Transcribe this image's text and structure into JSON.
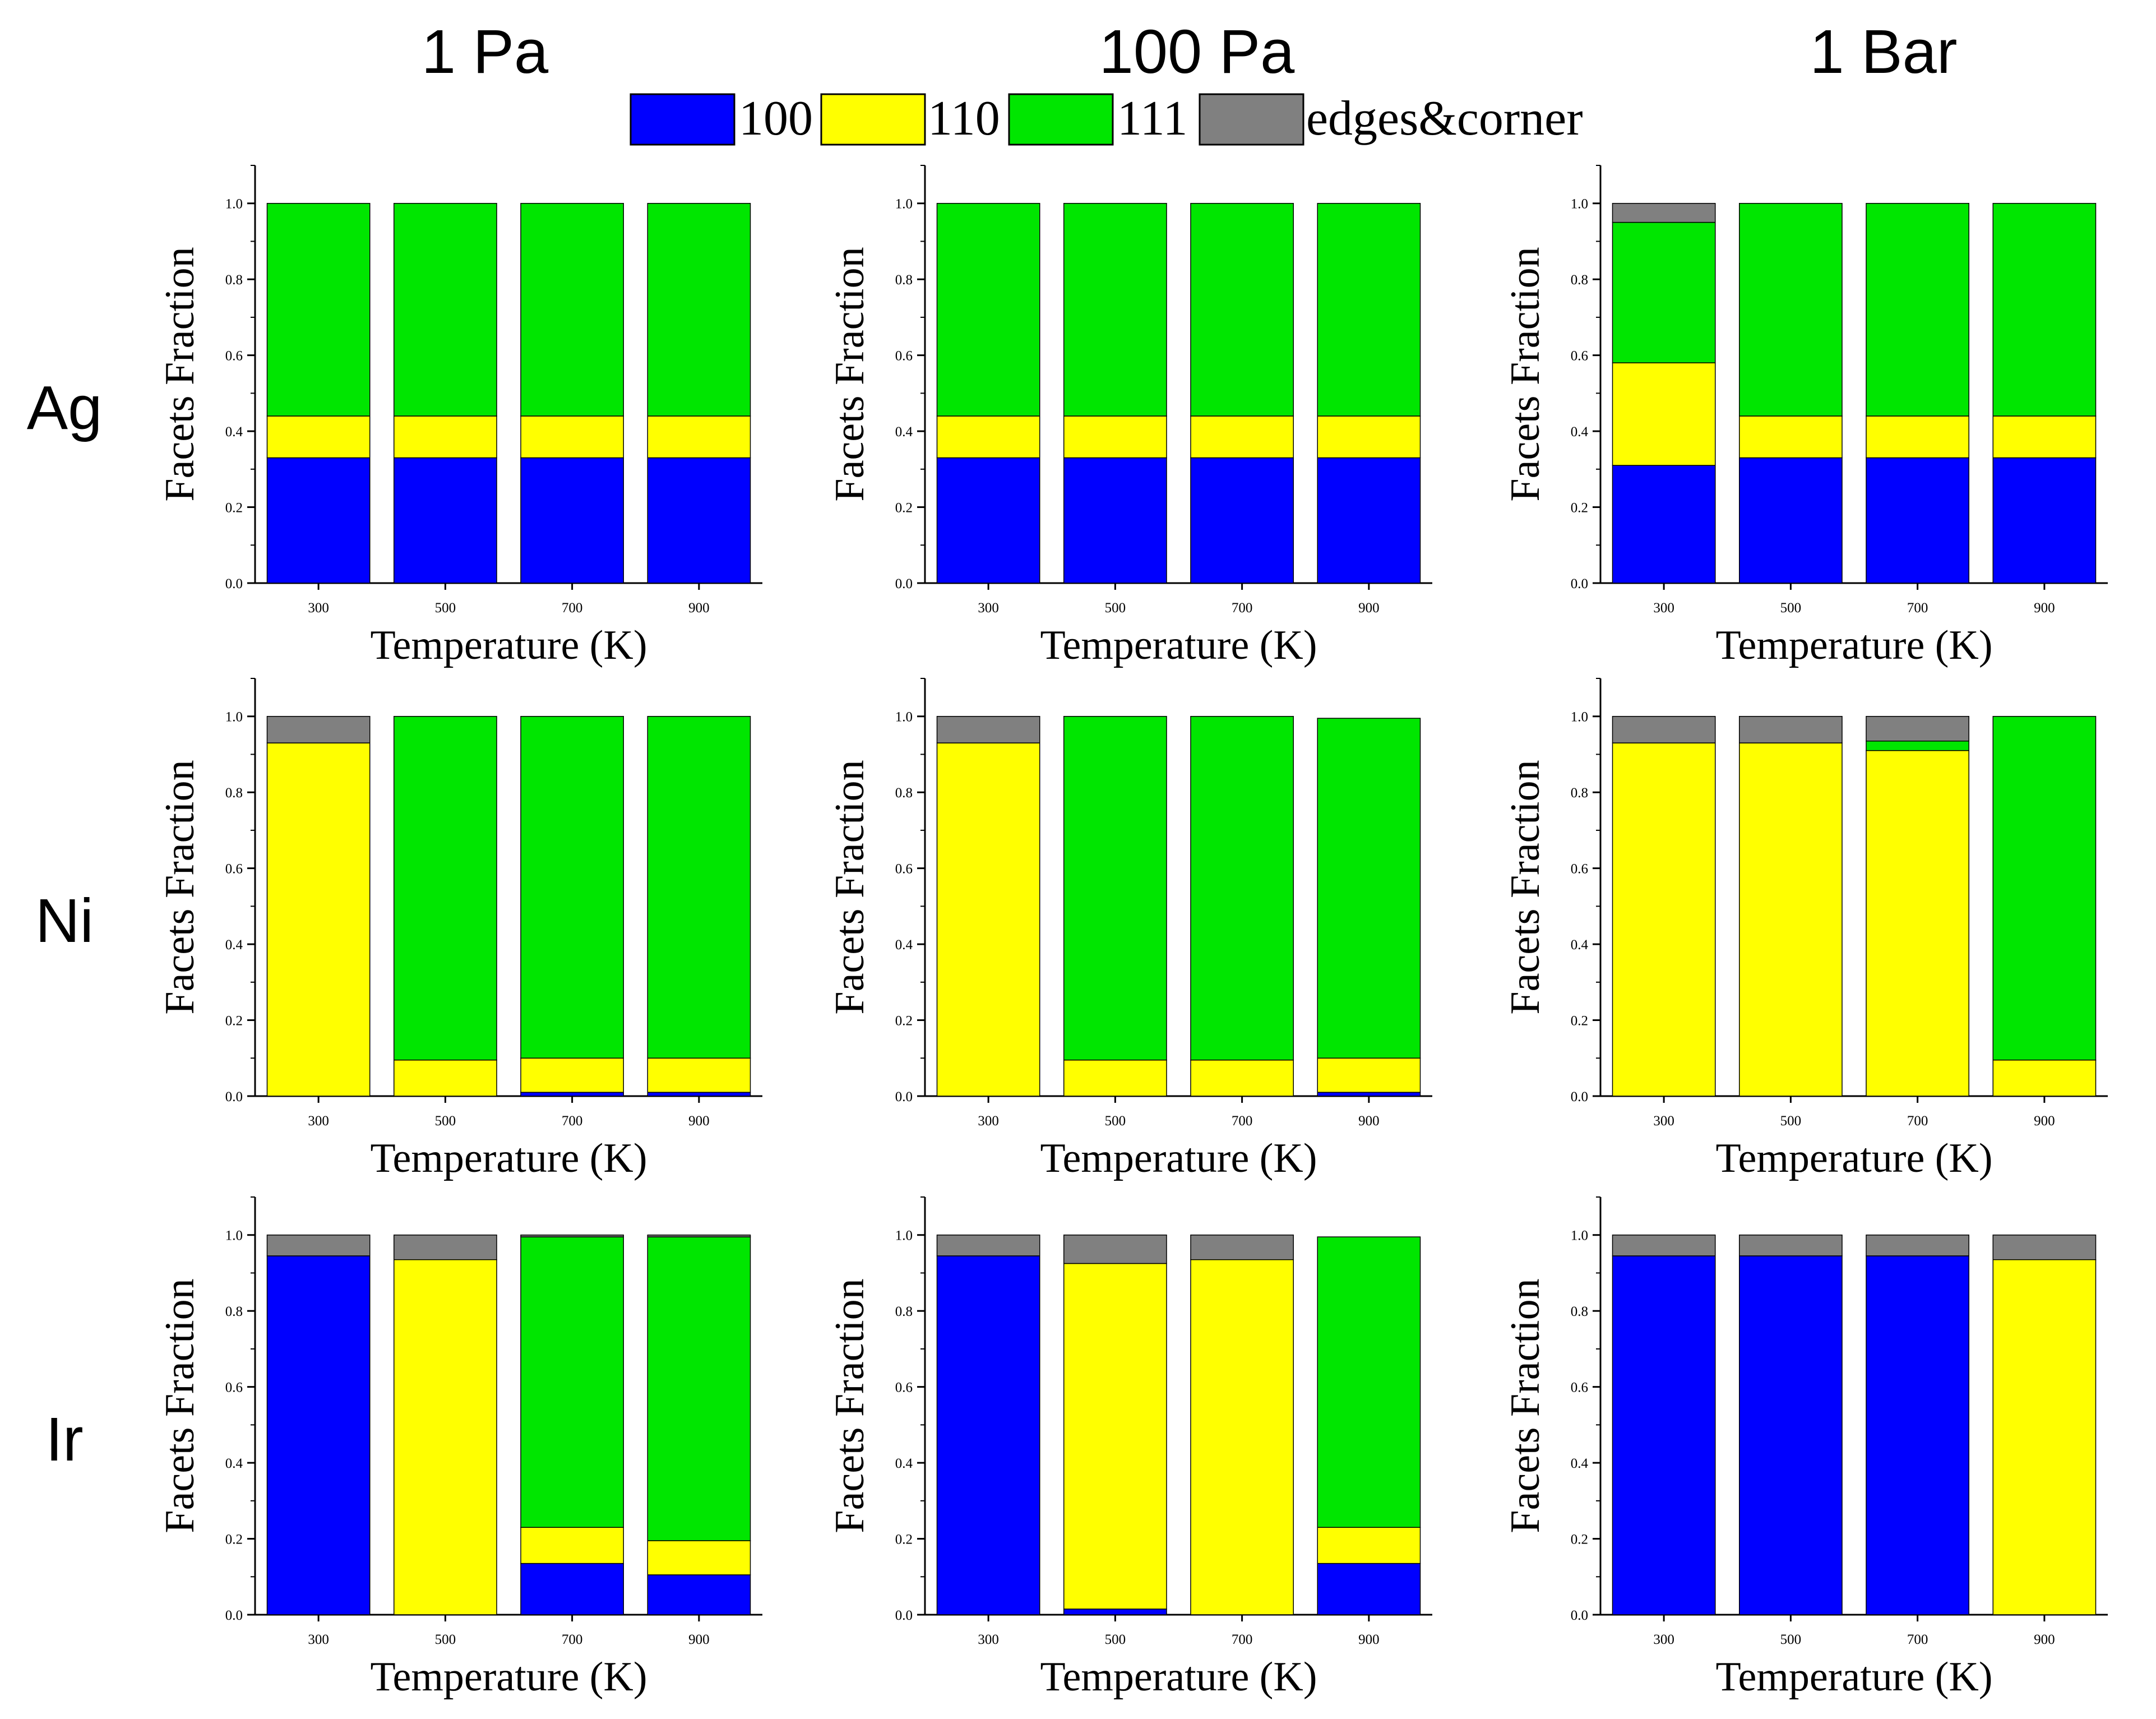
{
  "column_titles": [
    "1 Pa",
    "100 Pa",
    "1 Bar"
  ],
  "row_labels": [
    "Ag",
    "Ni",
    "Ir"
  ],
  "legend": [
    {
      "label": "100",
      "color": "#0000ff"
    },
    {
      "label": "110",
      "color": "#ffff00"
    },
    {
      "label": "111",
      "color": "#00e600"
    },
    {
      "label": "edges&corner",
      "color": "#808080"
    }
  ],
  "colors": {
    "100": "#0000ff",
    "110": "#ffff00",
    "111": "#00e600",
    "edges&corner": "#808080"
  },
  "chart_data": [
    {
      "type": "bar",
      "stacked": true,
      "panel": "Ag-1 Pa",
      "xlabel": "Temperature (K)",
      "ylabel": "Facets Fraction",
      "ylim": [
        0,
        1.1
      ],
      "yticks": [
        "0.0",
        "0.2",
        "0.4",
        "0.6",
        "0.8",
        "1.0"
      ],
      "categories": [
        "300",
        "500",
        "700",
        "900"
      ],
      "series": [
        {
          "name": "100",
          "values": [
            0.33,
            0.33,
            0.33,
            0.33
          ]
        },
        {
          "name": "110",
          "values": [
            0.11,
            0.11,
            0.11,
            0.11
          ]
        },
        {
          "name": "111",
          "values": [
            0.56,
            0.56,
            0.56,
            0.56
          ]
        },
        {
          "name": "edges&corner",
          "values": [
            0,
            0,
            0,
            0
          ]
        }
      ]
    },
    {
      "type": "bar",
      "stacked": true,
      "panel": "Ag-100 Pa",
      "xlabel": "Temperature (K)",
      "ylabel": "Facets Fraction",
      "ylim": [
        0,
        1.1
      ],
      "yticks": [
        "0.0",
        "0.2",
        "0.4",
        "0.6",
        "0.8",
        "1.0"
      ],
      "categories": [
        "300",
        "500",
        "700",
        "900"
      ],
      "series": [
        {
          "name": "100",
          "values": [
            0.33,
            0.33,
            0.33,
            0.33
          ]
        },
        {
          "name": "110",
          "values": [
            0.11,
            0.11,
            0.11,
            0.11
          ]
        },
        {
          "name": "111",
          "values": [
            0.56,
            0.56,
            0.56,
            0.56
          ]
        },
        {
          "name": "edges&corner",
          "values": [
            0,
            0,
            0,
            0
          ]
        }
      ]
    },
    {
      "type": "bar",
      "stacked": true,
      "panel": "Ag-1 Bar",
      "xlabel": "Temperature (K)",
      "ylabel": "Facets Fraction",
      "ylim": [
        0,
        1.1
      ],
      "yticks": [
        "0.0",
        "0.2",
        "0.4",
        "0.6",
        "0.8",
        "1.0"
      ],
      "categories": [
        "300",
        "500",
        "700",
        "900"
      ],
      "series": [
        {
          "name": "100",
          "values": [
            0.31,
            0.33,
            0.33,
            0.33
          ]
        },
        {
          "name": "110",
          "values": [
            0.27,
            0.11,
            0.11,
            0.11
          ]
        },
        {
          "name": "111",
          "values": [
            0.37,
            0.56,
            0.56,
            0.56
          ]
        },
        {
          "name": "edges&corner",
          "values": [
            0.05,
            0,
            0,
            0
          ]
        }
      ]
    },
    {
      "type": "bar",
      "stacked": true,
      "panel": "Ni-1 Pa",
      "xlabel": "Temperature (K)",
      "ylabel": "Facets Fraction",
      "ylim": [
        0,
        1.1
      ],
      "yticks": [
        "0.0",
        "0.2",
        "0.4",
        "0.6",
        "0.8",
        "1.0"
      ],
      "categories": [
        "300",
        "500",
        "700",
        "900"
      ],
      "series": [
        {
          "name": "100",
          "values": [
            0,
            0,
            0.01,
            0.01
          ]
        },
        {
          "name": "110",
          "values": [
            0.93,
            0.095,
            0.09,
            0.09
          ]
        },
        {
          "name": "111",
          "values": [
            0,
            0.905,
            0.9,
            0.9
          ]
        },
        {
          "name": "edges&corner",
          "values": [
            0.07,
            0,
            0,
            0
          ]
        }
      ]
    },
    {
      "type": "bar",
      "stacked": true,
      "panel": "Ni-100 Pa",
      "xlabel": "Temperature (K)",
      "ylabel": "Facets Fraction",
      "ylim": [
        0,
        1.1
      ],
      "yticks": [
        "0.0",
        "0.2",
        "0.4",
        "0.6",
        "0.8",
        "1.0"
      ],
      "categories": [
        "300",
        "500",
        "700",
        "900"
      ],
      "series": [
        {
          "name": "100",
          "values": [
            0,
            0,
            0,
            0.01
          ]
        },
        {
          "name": "110",
          "values": [
            0.93,
            0.095,
            0.095,
            0.09
          ]
        },
        {
          "name": "111",
          "values": [
            0,
            0.905,
            0.905,
            0.895
          ]
        },
        {
          "name": "edges&corner",
          "values": [
            0.07,
            0,
            0,
            0
          ]
        }
      ]
    },
    {
      "type": "bar",
      "stacked": true,
      "panel": "Ni-1 Bar",
      "xlabel": "Temperature (K)",
      "ylabel": "Facets Fraction",
      "ylim": [
        0,
        1.1
      ],
      "yticks": [
        "0.0",
        "0.2",
        "0.4",
        "0.6",
        "0.8",
        "1.0"
      ],
      "categories": [
        "300",
        "500",
        "700",
        "900"
      ],
      "series": [
        {
          "name": "100",
          "values": [
            0,
            0,
            0,
            0
          ]
        },
        {
          "name": "110",
          "values": [
            0.93,
            0.93,
            0.91,
            0.095
          ]
        },
        {
          "name": "111",
          "values": [
            0,
            0,
            0.025,
            0.905
          ]
        },
        {
          "name": "edges&corner",
          "values": [
            0.07,
            0.07,
            0.065,
            0
          ]
        }
      ]
    },
    {
      "type": "bar",
      "stacked": true,
      "panel": "Ir-1 Pa",
      "xlabel": "Temperature (K)",
      "ylabel": "Facets Fraction",
      "ylim": [
        0,
        1.1
      ],
      "yticks": [
        "0.0",
        "0.2",
        "0.4",
        "0.6",
        "0.8",
        "1.0"
      ],
      "categories": [
        "300",
        "500",
        "700",
        "900"
      ],
      "series": [
        {
          "name": "100",
          "values": [
            0.945,
            0,
            0.135,
            0.105
          ]
        },
        {
          "name": "110",
          "values": [
            0,
            0.935,
            0.095,
            0.09
          ]
        },
        {
          "name": "111",
          "values": [
            0,
            0,
            0.765,
            0.8
          ]
        },
        {
          "name": "edges&corner",
          "values": [
            0.055,
            0.065,
            0.005,
            0.005
          ]
        }
      ]
    },
    {
      "type": "bar",
      "stacked": true,
      "panel": "Ir-100 Pa",
      "xlabel": "Temperature (K)",
      "ylabel": "Facets Fraction",
      "ylim": [
        0,
        1.1
      ],
      "yticks": [
        "0.0",
        "0.2",
        "0.4",
        "0.6",
        "0.8",
        "1.0"
      ],
      "categories": [
        "300",
        "500",
        "700",
        "900"
      ],
      "series": [
        {
          "name": "100",
          "values": [
            0.945,
            0.015,
            0,
            0.135
          ]
        },
        {
          "name": "110",
          "values": [
            0,
            0.91,
            0.935,
            0.095
          ]
        },
        {
          "name": "111",
          "values": [
            0,
            0,
            0,
            0.765
          ]
        },
        {
          "name": "edges&corner",
          "values": [
            0.055,
            0.075,
            0.065,
            0
          ]
        }
      ]
    },
    {
      "type": "bar",
      "stacked": true,
      "panel": "Ir-1 Bar",
      "xlabel": "Temperature (K)",
      "ylabel": "Facets Fraction",
      "ylim": [
        0,
        1.1
      ],
      "yticks": [
        "0.0",
        "0.2",
        "0.4",
        "0.6",
        "0.8",
        "1.0"
      ],
      "categories": [
        "300",
        "500",
        "700",
        "900"
      ],
      "series": [
        {
          "name": "100",
          "values": [
            0.945,
            0.945,
            0.945,
            0
          ]
        },
        {
          "name": "110",
          "values": [
            0,
            0,
            0,
            0.935
          ]
        },
        {
          "name": "111",
          "values": [
            0,
            0,
            0,
            0
          ]
        },
        {
          "name": "edges&corner",
          "values": [
            0.055,
            0.055,
            0.055,
            0.065
          ]
        }
      ]
    }
  ]
}
